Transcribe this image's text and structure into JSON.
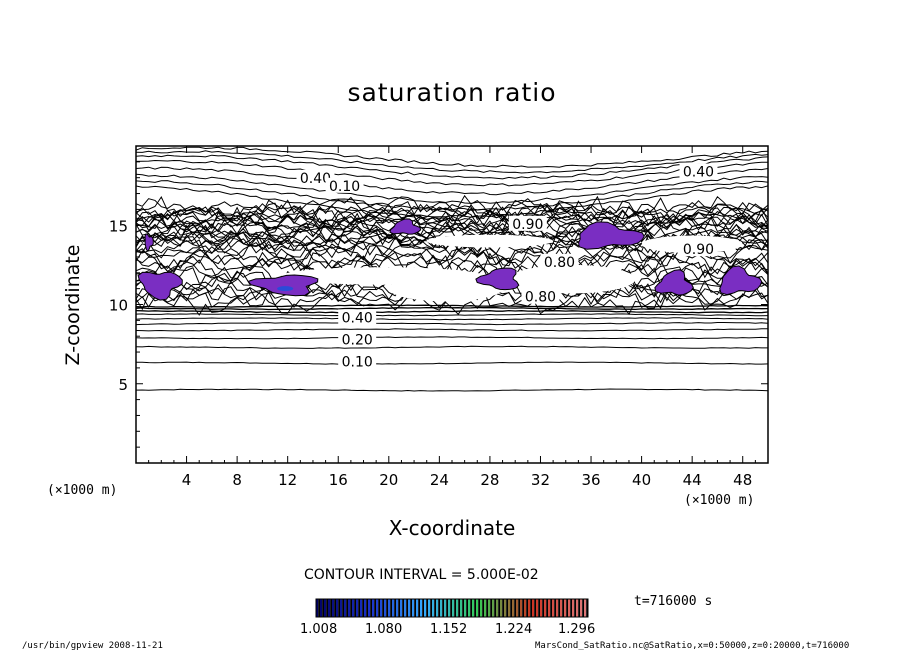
{
  "chart_data": {
    "type": "contour",
    "title": "saturation ratio",
    "xlabel": "X-coordinate",
    "ylabel": "Z-coordinate",
    "x_unit": "(×1000 m)",
    "z_unit": "(×1000 m)",
    "xlim": [
      0,
      50
    ],
    "ylim": [
      0,
      20
    ],
    "x_ticks": [
      4,
      8,
      12,
      16,
      20,
      24,
      28,
      32,
      36,
      40,
      44,
      48
    ],
    "y_ticks": [
      5,
      10,
      15
    ],
    "contour_interval_text": "CONTOUR INTERVAL = 5.000E-02",
    "contour_labels": [
      {
        "text": "0.40",
        "x": 44.5,
        "z": 18.2
      },
      {
        "text": "0.40",
        "x": 14.2,
        "z": 17.8
      },
      {
        "text": "0.10",
        "x": 16.5,
        "z": 17.3
      },
      {
        "text": "0.90",
        "x": 31.0,
        "z": 14.9
      },
      {
        "text": "0.90",
        "x": 44.5,
        "z": 13.3
      },
      {
        "text": "0.80",
        "x": 33.5,
        "z": 12.5
      },
      {
        "text": "0.80",
        "x": 32.0,
        "z": 10.3
      },
      {
        "text": "0.40",
        "x": 17.5,
        "z": 9.0
      },
      {
        "text": "0.20",
        "x": 17.5,
        "z": 7.6
      },
      {
        "text": "0.10",
        "x": 17.5,
        "z": 6.2
      }
    ],
    "supersaturated_regions": [
      {
        "x": [
          20,
          22.6
        ],
        "z": [
          14.3,
          15.4
        ]
      },
      {
        "x": [
          34.2,
          40.4
        ],
        "z": [
          13.4,
          15.2
        ]
      },
      {
        "x": [
          0.6,
          1.4
        ],
        "z": [
          13.4,
          14.5
        ]
      },
      {
        "x": [
          0.0,
          3.8
        ],
        "z": [
          10.3,
          12.3
        ]
      },
      {
        "x": [
          9.0,
          14.8
        ],
        "z": [
          10.5,
          12.0
        ]
      },
      {
        "x": [
          27.0,
          30.6
        ],
        "z": [
          10.8,
          12.4
        ]
      },
      {
        "x": [
          41.0,
          44.2
        ],
        "z": [
          10.4,
          12.2
        ]
      },
      {
        "x": [
          45.8,
          49.6
        ],
        "z": [
          10.5,
          12.4
        ]
      }
    ],
    "colorbar": {
      "ticks": [
        "1.008",
        "1.080",
        "1.152",
        "1.224",
        "1.296"
      ],
      "colors": [
        "#000066",
        "#1a33cc",
        "#33aaff",
        "#33cc55",
        "#cc3322",
        "#dd7777"
      ]
    },
    "time_label": "t=716000 s",
    "fill_color": "#7a2ec2"
  },
  "footer": {
    "left": "/usr/bin/gpview   2008-11-21",
    "right": "MarsCond_SatRatio.nc@SatRatio,x=0:50000,z=0:20000,t=716000"
  }
}
